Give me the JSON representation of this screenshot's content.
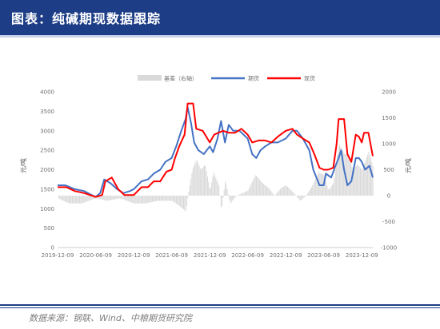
{
  "header": {
    "title": "图表：纯碱期现数据跟踪"
  },
  "footer": {
    "source": "数据来源：钢联、Wind、中粮期货研究院"
  },
  "chart_data": {
    "type": "line",
    "legend": [
      "基差（右轴）",
      "期货",
      "现货"
    ],
    "legend_position": "top-center",
    "colors": {
      "basis": "#d9d9d9",
      "futures": "#4472c4",
      "spot": "#ff0000"
    },
    "ylabel_left": "元/吨",
    "ylabel_right": "元/吨",
    "ylim_left": [
      0,
      4000
    ],
    "ylim_right": [
      -1000,
      2000
    ],
    "yticks_left": [
      0,
      500,
      1000,
      1500,
      2000,
      2500,
      3000,
      3500,
      4000
    ],
    "yticks_right": [
      -1000,
      -500,
      0,
      500,
      1000,
      1500,
      2000
    ],
    "xticks": [
      "2019-12-09",
      "2020-06-09",
      "2020-12-09",
      "2021-06-09",
      "2021-12-09",
      "2022-06-09",
      "2022-12-09",
      "2023-06-09",
      "2023-12-09"
    ],
    "x_range": [
      "2019-12-09",
      "2024-01-31"
    ],
    "series": [
      {
        "name": "期货",
        "axis": "left",
        "points": [
          [
            "2019-12-09",
            1600
          ],
          [
            "2020-01-15",
            1600
          ],
          [
            "2020-03-01",
            1500
          ],
          [
            "2020-04-15",
            1450
          ],
          [
            "2020-05-20",
            1350
          ],
          [
            "2020-06-09",
            1300
          ],
          [
            "2020-07-01",
            1400
          ],
          [
            "2020-07-20",
            1750
          ],
          [
            "2020-08-20",
            1650
          ],
          [
            "2020-09-20",
            1500
          ],
          [
            "2020-10-20",
            1400
          ],
          [
            "2020-11-20",
            1450
          ],
          [
            "2020-12-09",
            1500
          ],
          [
            "2021-01-15",
            1700
          ],
          [
            "2021-02-15",
            1750
          ],
          [
            "2021-03-15",
            1900
          ],
          [
            "2021-04-15",
            2000
          ],
          [
            "2021-05-10",
            2200
          ],
          [
            "2021-06-09",
            2300
          ],
          [
            "2021-07-01",
            2600
          ],
          [
            "2021-07-25",
            3000
          ],
          [
            "2021-08-15",
            3300
          ],
          [
            "2021-08-25",
            3600
          ],
          [
            "2021-09-10",
            3200
          ],
          [
            "2021-09-25",
            2700
          ],
          [
            "2021-10-15",
            2500
          ],
          [
            "2021-11-10",
            2400
          ],
          [
            "2021-12-09",
            2600
          ],
          [
            "2021-12-25",
            2450
          ],
          [
            "2022-01-15",
            2800
          ],
          [
            "2022-02-01",
            3250
          ],
          [
            "2022-02-20",
            2700
          ],
          [
            "2022-03-10",
            3150
          ],
          [
            "2022-04-01",
            3000
          ],
          [
            "2022-05-01",
            3000
          ],
          [
            "2022-06-09",
            2800
          ],
          [
            "2022-07-01",
            2400
          ],
          [
            "2022-07-20",
            2300
          ],
          [
            "2022-08-10",
            2500
          ],
          [
            "2022-09-01",
            2600
          ],
          [
            "2022-10-01",
            2700
          ],
          [
            "2022-11-01",
            2700
          ],
          [
            "2022-12-09",
            2800
          ],
          [
            "2023-01-10",
            3000
          ],
          [
            "2023-02-01",
            3000
          ],
          [
            "2023-03-01",
            2800
          ],
          [
            "2023-04-01",
            2500
          ],
          [
            "2023-04-20",
            2000
          ],
          [
            "2023-05-20",
            1600
          ],
          [
            "2023-06-09",
            1600
          ],
          [
            "2023-06-20",
            1900
          ],
          [
            "2023-07-15",
            1800
          ],
          [
            "2023-08-05",
            2100
          ],
          [
            "2023-08-20",
            2300
          ],
          [
            "2023-09-01",
            2500
          ],
          [
            "2023-09-15",
            2000
          ],
          [
            "2023-10-01",
            1600
          ],
          [
            "2023-10-20",
            1700
          ],
          [
            "2023-11-10",
            2300
          ],
          [
            "2023-11-25",
            2300
          ],
          [
            "2023-12-09",
            2200
          ],
          [
            "2023-12-25",
            2000
          ],
          [
            "2024-01-15",
            2100
          ],
          [
            "2024-01-31",
            1800
          ]
        ]
      },
      {
        "name": "现货",
        "axis": "left",
        "points": [
          [
            "2019-12-09",
            1550
          ],
          [
            "2020-01-20",
            1550
          ],
          [
            "2020-03-01",
            1450
          ],
          [
            "2020-04-15",
            1400
          ],
          [
            "2020-06-09",
            1300
          ],
          [
            "2020-07-10",
            1350
          ],
          [
            "2020-07-25",
            1700
          ],
          [
            "2020-08-25",
            1800
          ],
          [
            "2020-09-25",
            1500
          ],
          [
            "2020-10-25",
            1350
          ],
          [
            "2020-11-15",
            1350
          ],
          [
            "2020-12-09",
            1350
          ],
          [
            "2021-01-15",
            1550
          ],
          [
            "2021-02-15",
            1550
          ],
          [
            "2021-03-15",
            1700
          ],
          [
            "2021-04-15",
            1700
          ],
          [
            "2021-05-15",
            1950
          ],
          [
            "2021-06-09",
            2000
          ],
          [
            "2021-06-25",
            2300
          ],
          [
            "2021-07-15",
            2600
          ],
          [
            "2021-08-10",
            2900
          ],
          [
            "2021-08-25",
            3700
          ],
          [
            "2021-09-20",
            3700
          ],
          [
            "2021-10-05",
            3050
          ],
          [
            "2021-11-05",
            3000
          ],
          [
            "2021-12-09",
            2700
          ],
          [
            "2021-12-30",
            2900
          ],
          [
            "2022-02-10",
            3000
          ],
          [
            "2022-03-10",
            2950
          ],
          [
            "2022-04-10",
            2950
          ],
          [
            "2022-05-10",
            3050
          ],
          [
            "2022-06-09",
            2900
          ],
          [
            "2022-07-01",
            2700
          ],
          [
            "2022-08-01",
            2750
          ],
          [
            "2022-09-01",
            2750
          ],
          [
            "2022-10-01",
            2700
          ],
          [
            "2022-11-01",
            2850
          ],
          [
            "2022-12-09",
            3000
          ],
          [
            "2023-01-10",
            3050
          ],
          [
            "2023-02-01",
            2900
          ],
          [
            "2023-03-01",
            2800
          ],
          [
            "2023-04-01",
            2700
          ],
          [
            "2023-04-25",
            2400
          ],
          [
            "2023-05-20",
            2050
          ],
          [
            "2023-06-09",
            2000
          ],
          [
            "2023-07-01",
            2000
          ],
          [
            "2023-07-25",
            2050
          ],
          [
            "2023-08-10",
            2650
          ],
          [
            "2023-08-20",
            3300
          ],
          [
            "2023-09-15",
            3300
          ],
          [
            "2023-10-01",
            2400
          ],
          [
            "2023-10-20",
            2200
          ],
          [
            "2023-11-10",
            2900
          ],
          [
            "2023-11-25",
            2850
          ],
          [
            "2023-12-09",
            2700
          ],
          [
            "2023-12-20",
            2950
          ],
          [
            "2024-01-10",
            2950
          ],
          [
            "2024-01-31",
            2350
          ]
        ]
      },
      {
        "name": "基差",
        "axis": "right",
        "points": [
          [
            "2019-12-09",
            -50
          ],
          [
            "2020-02-01",
            -150
          ],
          [
            "2020-04-01",
            -150
          ],
          [
            "2020-06-09",
            -50
          ],
          [
            "2020-08-01",
            -100
          ],
          [
            "2020-10-01",
            -50
          ],
          [
            "2020-12-09",
            -150
          ],
          [
            "2021-02-01",
            -150
          ],
          [
            "2021-04-01",
            -100
          ],
          [
            "2021-06-09",
            -100
          ],
          [
            "2021-07-15",
            -200
          ],
          [
            "2021-08-15",
            -300
          ],
          [
            "2021-08-25",
            0
          ],
          [
            "2021-09-15",
            500
          ],
          [
            "2021-10-05",
            700
          ],
          [
            "2021-10-25",
            500
          ],
          [
            "2021-11-15",
            600
          ],
          [
            "2021-12-09",
            100
          ],
          [
            "2021-12-25",
            450
          ],
          [
            "2022-01-20",
            200
          ],
          [
            "2022-02-01",
            -300
          ],
          [
            "2022-02-20",
            300
          ],
          [
            "2022-03-15",
            -150
          ],
          [
            "2022-04-15",
            0
          ],
          [
            "2022-05-15",
            50
          ],
          [
            "2022-06-09",
            100
          ],
          [
            "2022-07-15",
            400
          ],
          [
            "2022-08-15",
            250
          ],
          [
            "2022-09-15",
            150
          ],
          [
            "2022-10-15",
            0
          ],
          [
            "2022-11-15",
            150
          ],
          [
            "2022-12-09",
            200
          ],
          [
            "2023-01-15",
            50
          ],
          [
            "2023-02-15",
            -100
          ],
          [
            "2023-03-15",
            0
          ],
          [
            "2023-04-15",
            200
          ],
          [
            "2023-05-15",
            450
          ],
          [
            "2023-06-09",
            400
          ],
          [
            "2023-07-01",
            100
          ],
          [
            "2023-07-25",
            250
          ],
          [
            "2023-08-20",
            1000
          ],
          [
            "2023-09-15",
            800
          ],
          [
            "2023-10-05",
            800
          ],
          [
            "2023-10-25",
            500
          ],
          [
            "2023-11-15",
            600
          ],
          [
            "2023-12-09",
            500
          ],
          [
            "2024-01-10",
            850
          ],
          [
            "2024-01-31",
            550
          ]
        ]
      }
    ]
  }
}
